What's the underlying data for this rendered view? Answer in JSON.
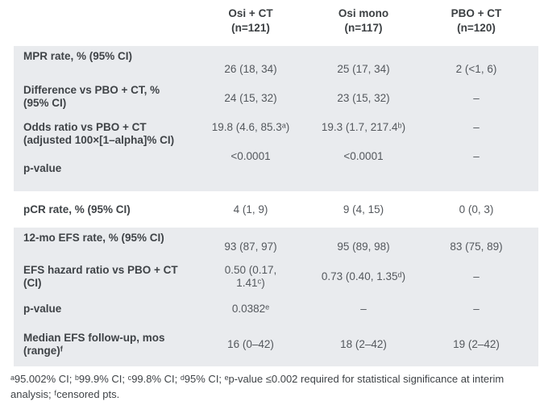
{
  "colors": {
    "panel_bg": "#e9ebee",
    "label_text": "#3f4347",
    "value_text": "#54585d",
    "page_bg": "#ffffff"
  },
  "table": {
    "columns": [
      {
        "label": "Osi + CT",
        "sub": "(n=121)"
      },
      {
        "label": "Osi mono",
        "sub": "(n=117)"
      },
      {
        "label": "PBO + CT",
        "sub": "(n=120)"
      }
    ],
    "sections": [
      {
        "name": "MPR",
        "rows": [
          {
            "label": "MPR rate, % (95% CI)",
            "values": [
              "26 (18, 34)",
              "25 (17, 34)",
              "2 (<1, 6)"
            ]
          },
          {
            "label": "Difference vs PBO + CT, %\n(95% CI)",
            "values": [
              "24 (15, 32)",
              "23 (15, 32)",
              "–"
            ]
          },
          {
            "label": "Odds ratio vs PBO + CT\n(adjusted 100×[1–alpha]% CI)",
            "values": [
              "19.8 (4.6, 85.3ᵃ)",
              "19.3 (1.7, 217.4ᵇ)",
              "–"
            ]
          },
          {
            "label": "p-value",
            "values": [
              "<0.0001",
              "<0.0001",
              "–"
            ]
          }
        ]
      },
      {
        "name": "pCR",
        "rows": [
          {
            "label": "pCR rate, % (95% CI)",
            "values": [
              "4 (1, 9)",
              "9 (4, 15)",
              "0 (0, 3)"
            ]
          }
        ]
      },
      {
        "name": "EFS",
        "rows": [
          {
            "label": "12-mo EFS rate, % (95% CI)",
            "values": [
              "93 (87, 97)",
              "95 (89, 98)",
              "83 (75, 89)"
            ]
          },
          {
            "label": "EFS hazard ratio vs PBO + CT\n(CI)",
            "values": [
              "0.50 (0.17,\n1.41ᶜ)",
              "0.73 (0.40, 1.35ᵈ)",
              "–"
            ]
          },
          {
            "label": "p-value",
            "values": [
              "0.0382ᵉ",
              "–",
              "–"
            ]
          },
          {
            "label": "Median EFS follow-up, mos\n(range)ᶠ",
            "values": [
              "16 (0–42)",
              "18 (2–42)",
              "19 (2–42)"
            ]
          }
        ]
      }
    ],
    "footnote": "ᵃ95.002% CI; ᵇ99.9% CI; ᶜ99.8% CI; ᵈ95% CI; ᵉp-value ≤0.002 required for statistical significance at interim analysis; ᶠcensored pts."
  }
}
